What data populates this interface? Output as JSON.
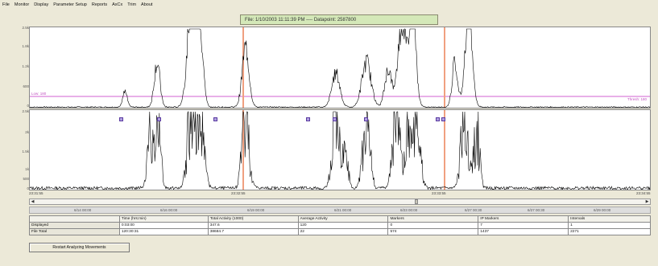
{
  "menu": [
    "File",
    "Monitor",
    "Display",
    "Parameter Setup",
    "Reports",
    "AxCx",
    "Trim",
    "About"
  ],
  "banner": "File: 1/10/2003 11:11:39 PM ---- Datapoint: 2587800",
  "plot1": {
    "ylabels": [
      "2.5k",
      "1.8k",
      "1.2k",
      "600",
      "0"
    ],
    "threshold_left": "Low: 180",
    "threshold_right": "Thresh: 180"
  },
  "plot2": {
    "ylabels": [
      "2.5k",
      "2k",
      "1.5k",
      "1k",
      "500",
      "0"
    ]
  },
  "xaxis_times": [
    "23:31:55",
    "23:32:55",
    "23:33:55",
    "23:34:55"
  ],
  "dates": [
    "6/14 00:00",
    "6/16 00:00",
    "6/19 00:00",
    "6/21 00:00",
    "6/23 00:00",
    "6/27 00:30",
    "6/27 00:30",
    "6/29 00:00"
  ],
  "table": {
    "headers": [
      "",
      "Time (hrs:min)",
      "Total Activity (1000)",
      "Average Activity",
      "Markers",
      "IP Markers",
      "Intervals"
    ],
    "rows": [
      [
        "Displayed",
        "0:03:00",
        "347.6",
        "120",
        "0",
        "7",
        "1"
      ],
      [
        "File Total",
        "120:30:31",
        "38684.7",
        "22",
        "574",
        "1437",
        "2271"
      ]
    ]
  },
  "button_label": "Restart Analyzing Movements",
  "colors": {
    "threshold": "#d060d0",
    "cursor": "#f0a080",
    "trace": "#000000",
    "banner": "#d4e8b8"
  }
}
